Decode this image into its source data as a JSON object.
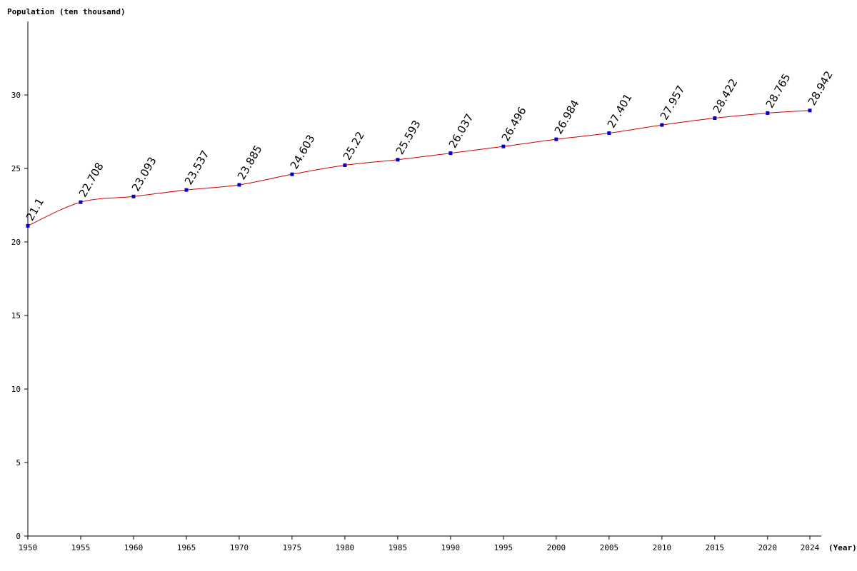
{
  "chart_data": {
    "type": "line",
    "ylabel": "Population (ten thousand)",
    "xlabel": "(Year)",
    "ylim": [
      0,
      35
    ],
    "xlim": [
      1950,
      2024
    ],
    "grid": false,
    "yticks": [
      0,
      5,
      10,
      15,
      20,
      25,
      30
    ],
    "xticks": [
      1950,
      1955,
      1960,
      1965,
      1970,
      1975,
      1980,
      1985,
      1990,
      1995,
      2000,
      2005,
      2010,
      2015,
      2020,
      2024
    ],
    "series": [
      {
        "x": [
          1950,
          1955,
          1960,
          1965,
          1970,
          1975,
          1980,
          1985,
          1990,
          1995,
          2000,
          2005,
          2010,
          2015,
          2020,
          2024
        ],
        "values": [
          21.1,
          22.708,
          23.093,
          23.537,
          23.885,
          24.603,
          25.22,
          25.593,
          26.037,
          26.496,
          26.984,
          27.401,
          27.957,
          28.422,
          28.765,
          28.942
        ],
        "labels": [
          "21.1",
          "22.708",
          "23.093",
          "23.537",
          "23.885",
          "24.603",
          "25.22",
          "25.593",
          "26.037",
          "26.496",
          "26.984",
          "27.401",
          "27.957",
          "28.422",
          "28.765",
          "28.942"
        ]
      }
    ],
    "colors": {
      "line": "#cc0000",
      "marker": "#0000cc",
      "axis": "#000000"
    }
  }
}
